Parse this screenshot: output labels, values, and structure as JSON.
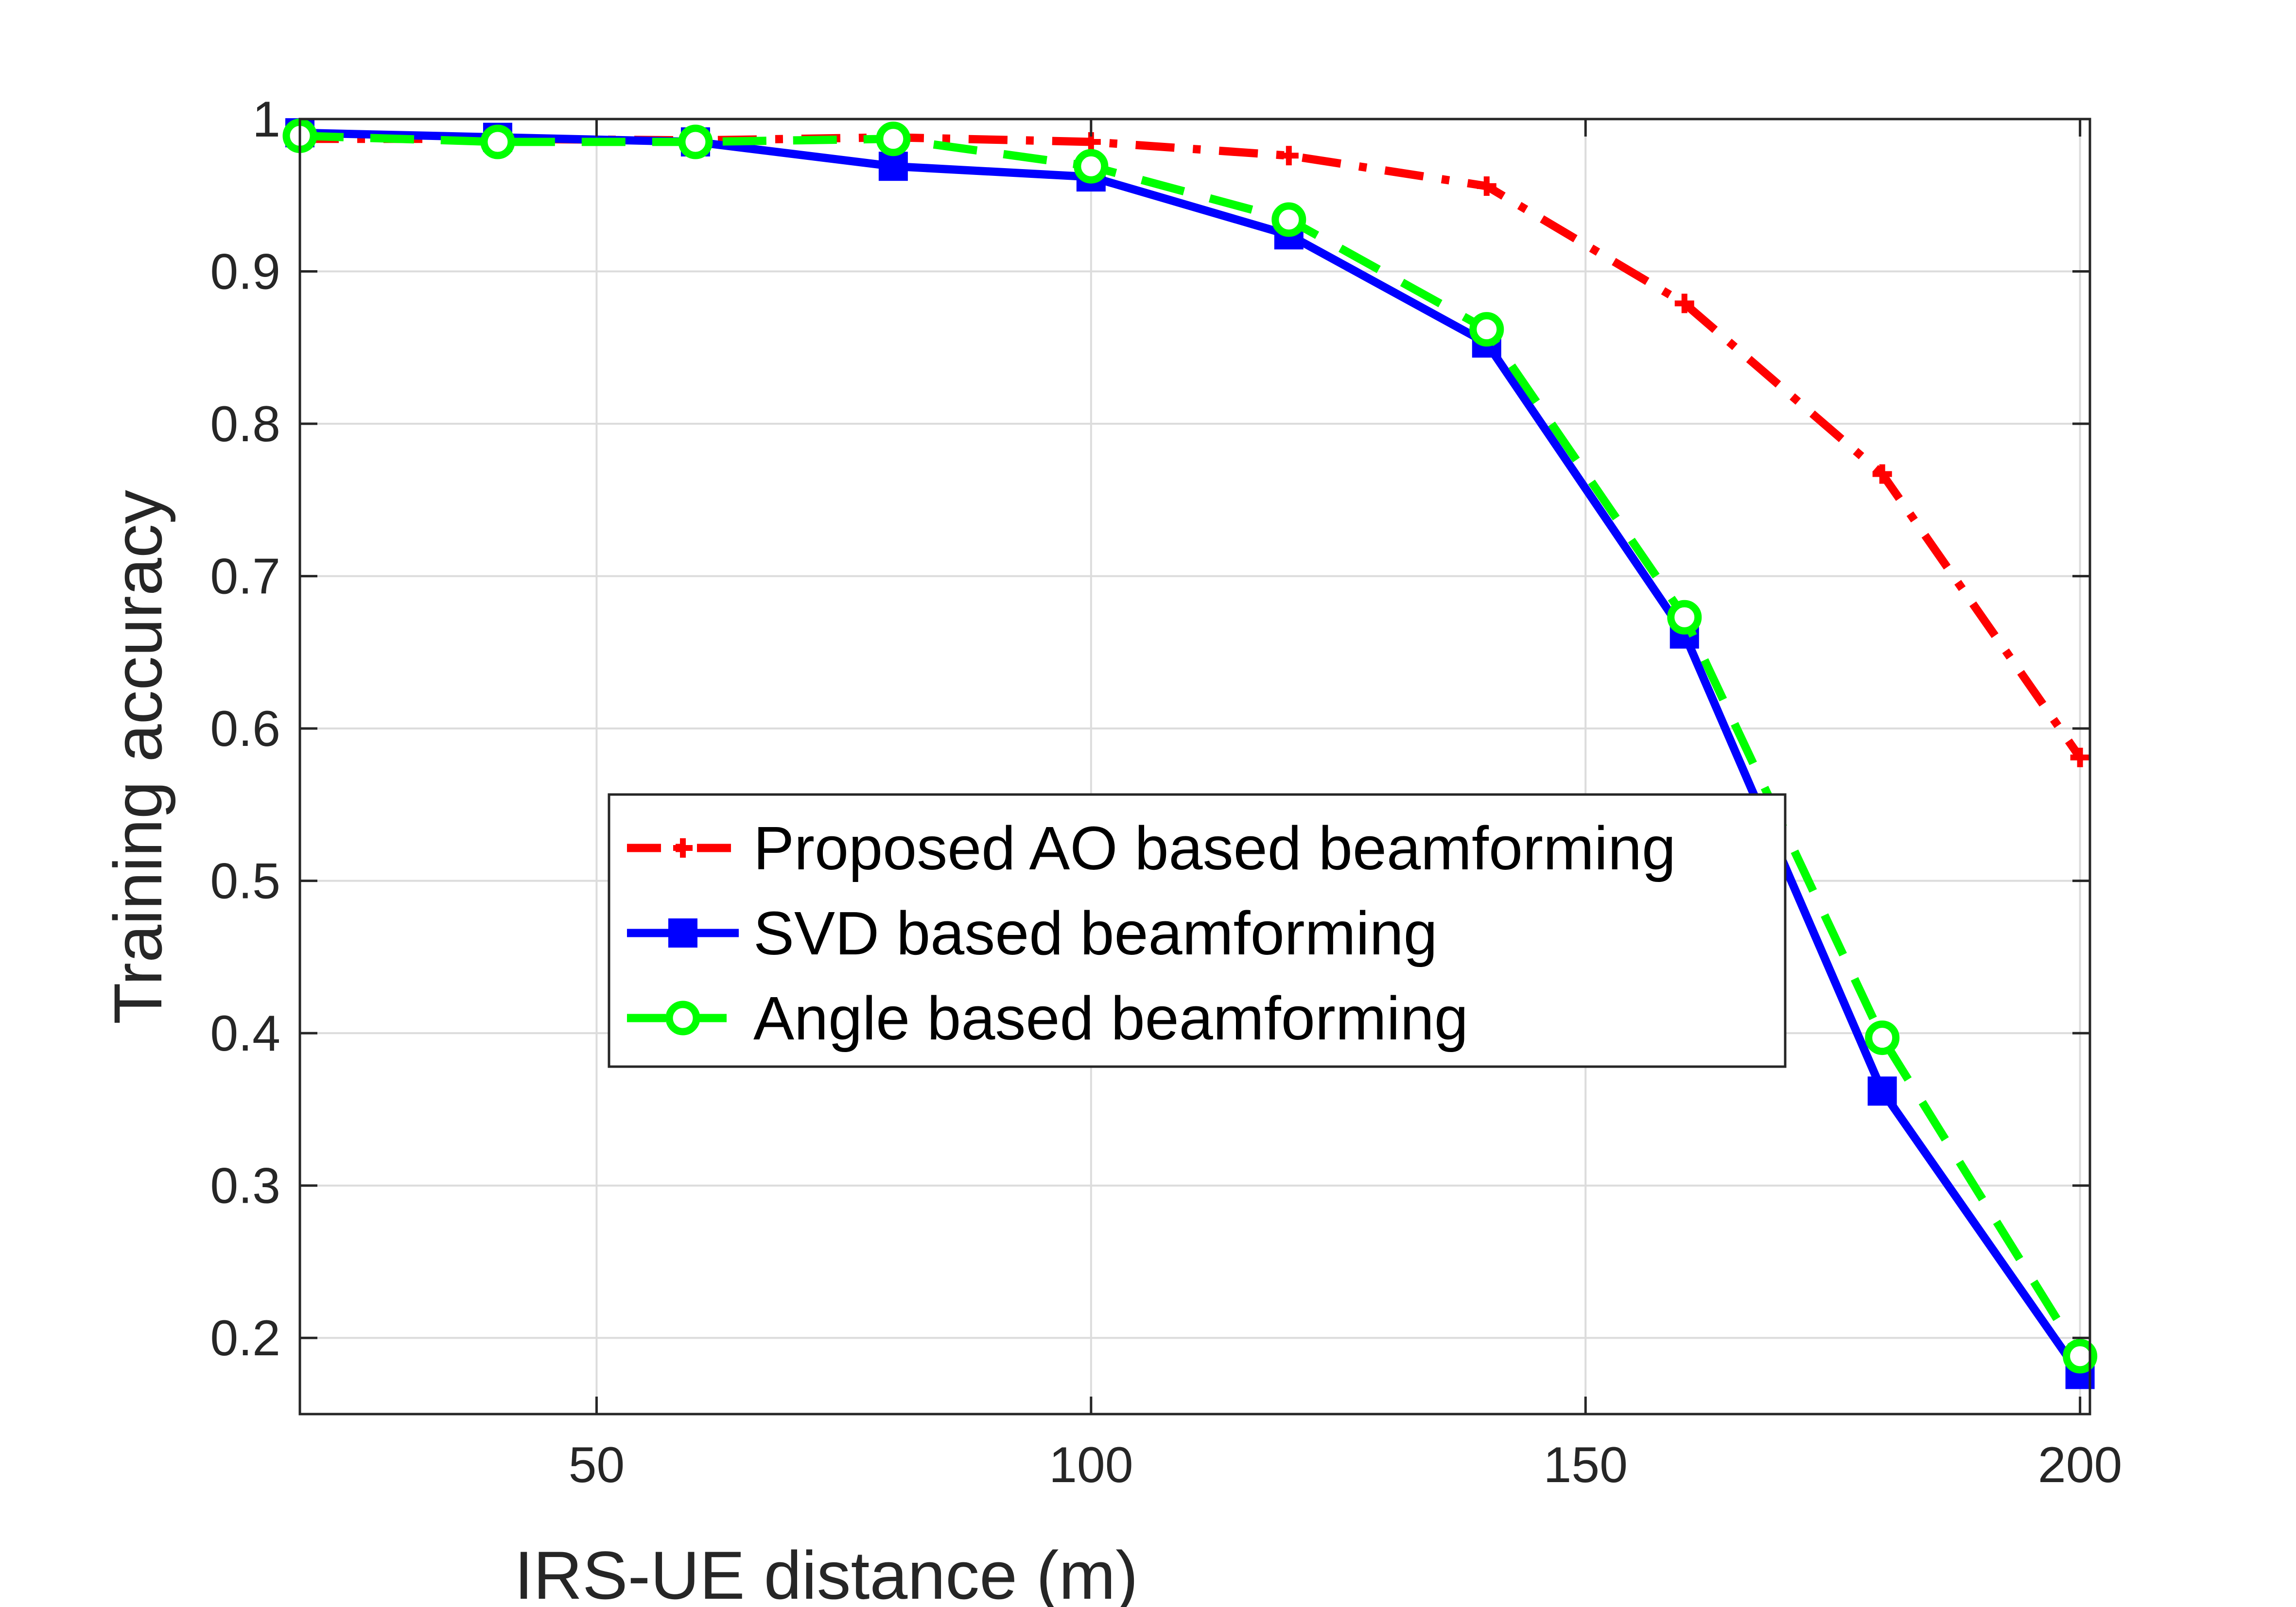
{
  "chart_data": {
    "type": "line",
    "title": "",
    "xlabel": "IRS-UE distance (m)",
    "ylabel": "Training accuracy",
    "xlim": [
      20,
      201
    ],
    "ylim": [
      0.15,
      1.0
    ],
    "xticks": [
      50,
      100,
      150,
      200
    ],
    "xtick_labels": [
      "50",
      "100",
      "150",
      "200"
    ],
    "yticks": [
      0.2,
      0.3,
      0.4,
      0.5,
      0.6,
      0.7,
      0.8,
      0.9,
      1.0
    ],
    "ytick_labels": [
      "0.2",
      "0.3",
      "0.4",
      "0.5",
      "0.6",
      "0.7",
      "0.8",
      "0.9",
      "1"
    ],
    "grid": true,
    "legend_position": "center",
    "x": [
      20,
      40,
      60,
      80,
      100,
      120,
      140,
      160,
      180,
      200
    ],
    "series": [
      {
        "name": "Proposed AO based beamforming",
        "values": [
          0.987,
          0.987,
          0.986,
          0.988,
          0.985,
          0.976,
          0.956,
          0.879,
          0.767,
          0.581
        ],
        "color": "#ff0000",
        "line_style": "dash-dot",
        "marker": "plus"
      },
      {
        "name": "SVD based beamforming",
        "values": [
          0.991,
          0.988,
          0.985,
          0.969,
          0.962,
          0.924,
          0.853,
          0.662,
          0.362,
          0.176
        ],
        "color": "#0000ff",
        "line_style": "solid",
        "marker": "square"
      },
      {
        "name": "Angle based beamforming",
        "values": [
          0.989,
          0.985,
          0.985,
          0.987,
          0.969,
          0.934,
          0.862,
          0.673,
          0.397,
          0.188
        ],
        "color": "#00ff00",
        "line_style": "dashed",
        "marker": "circle"
      }
    ]
  }
}
